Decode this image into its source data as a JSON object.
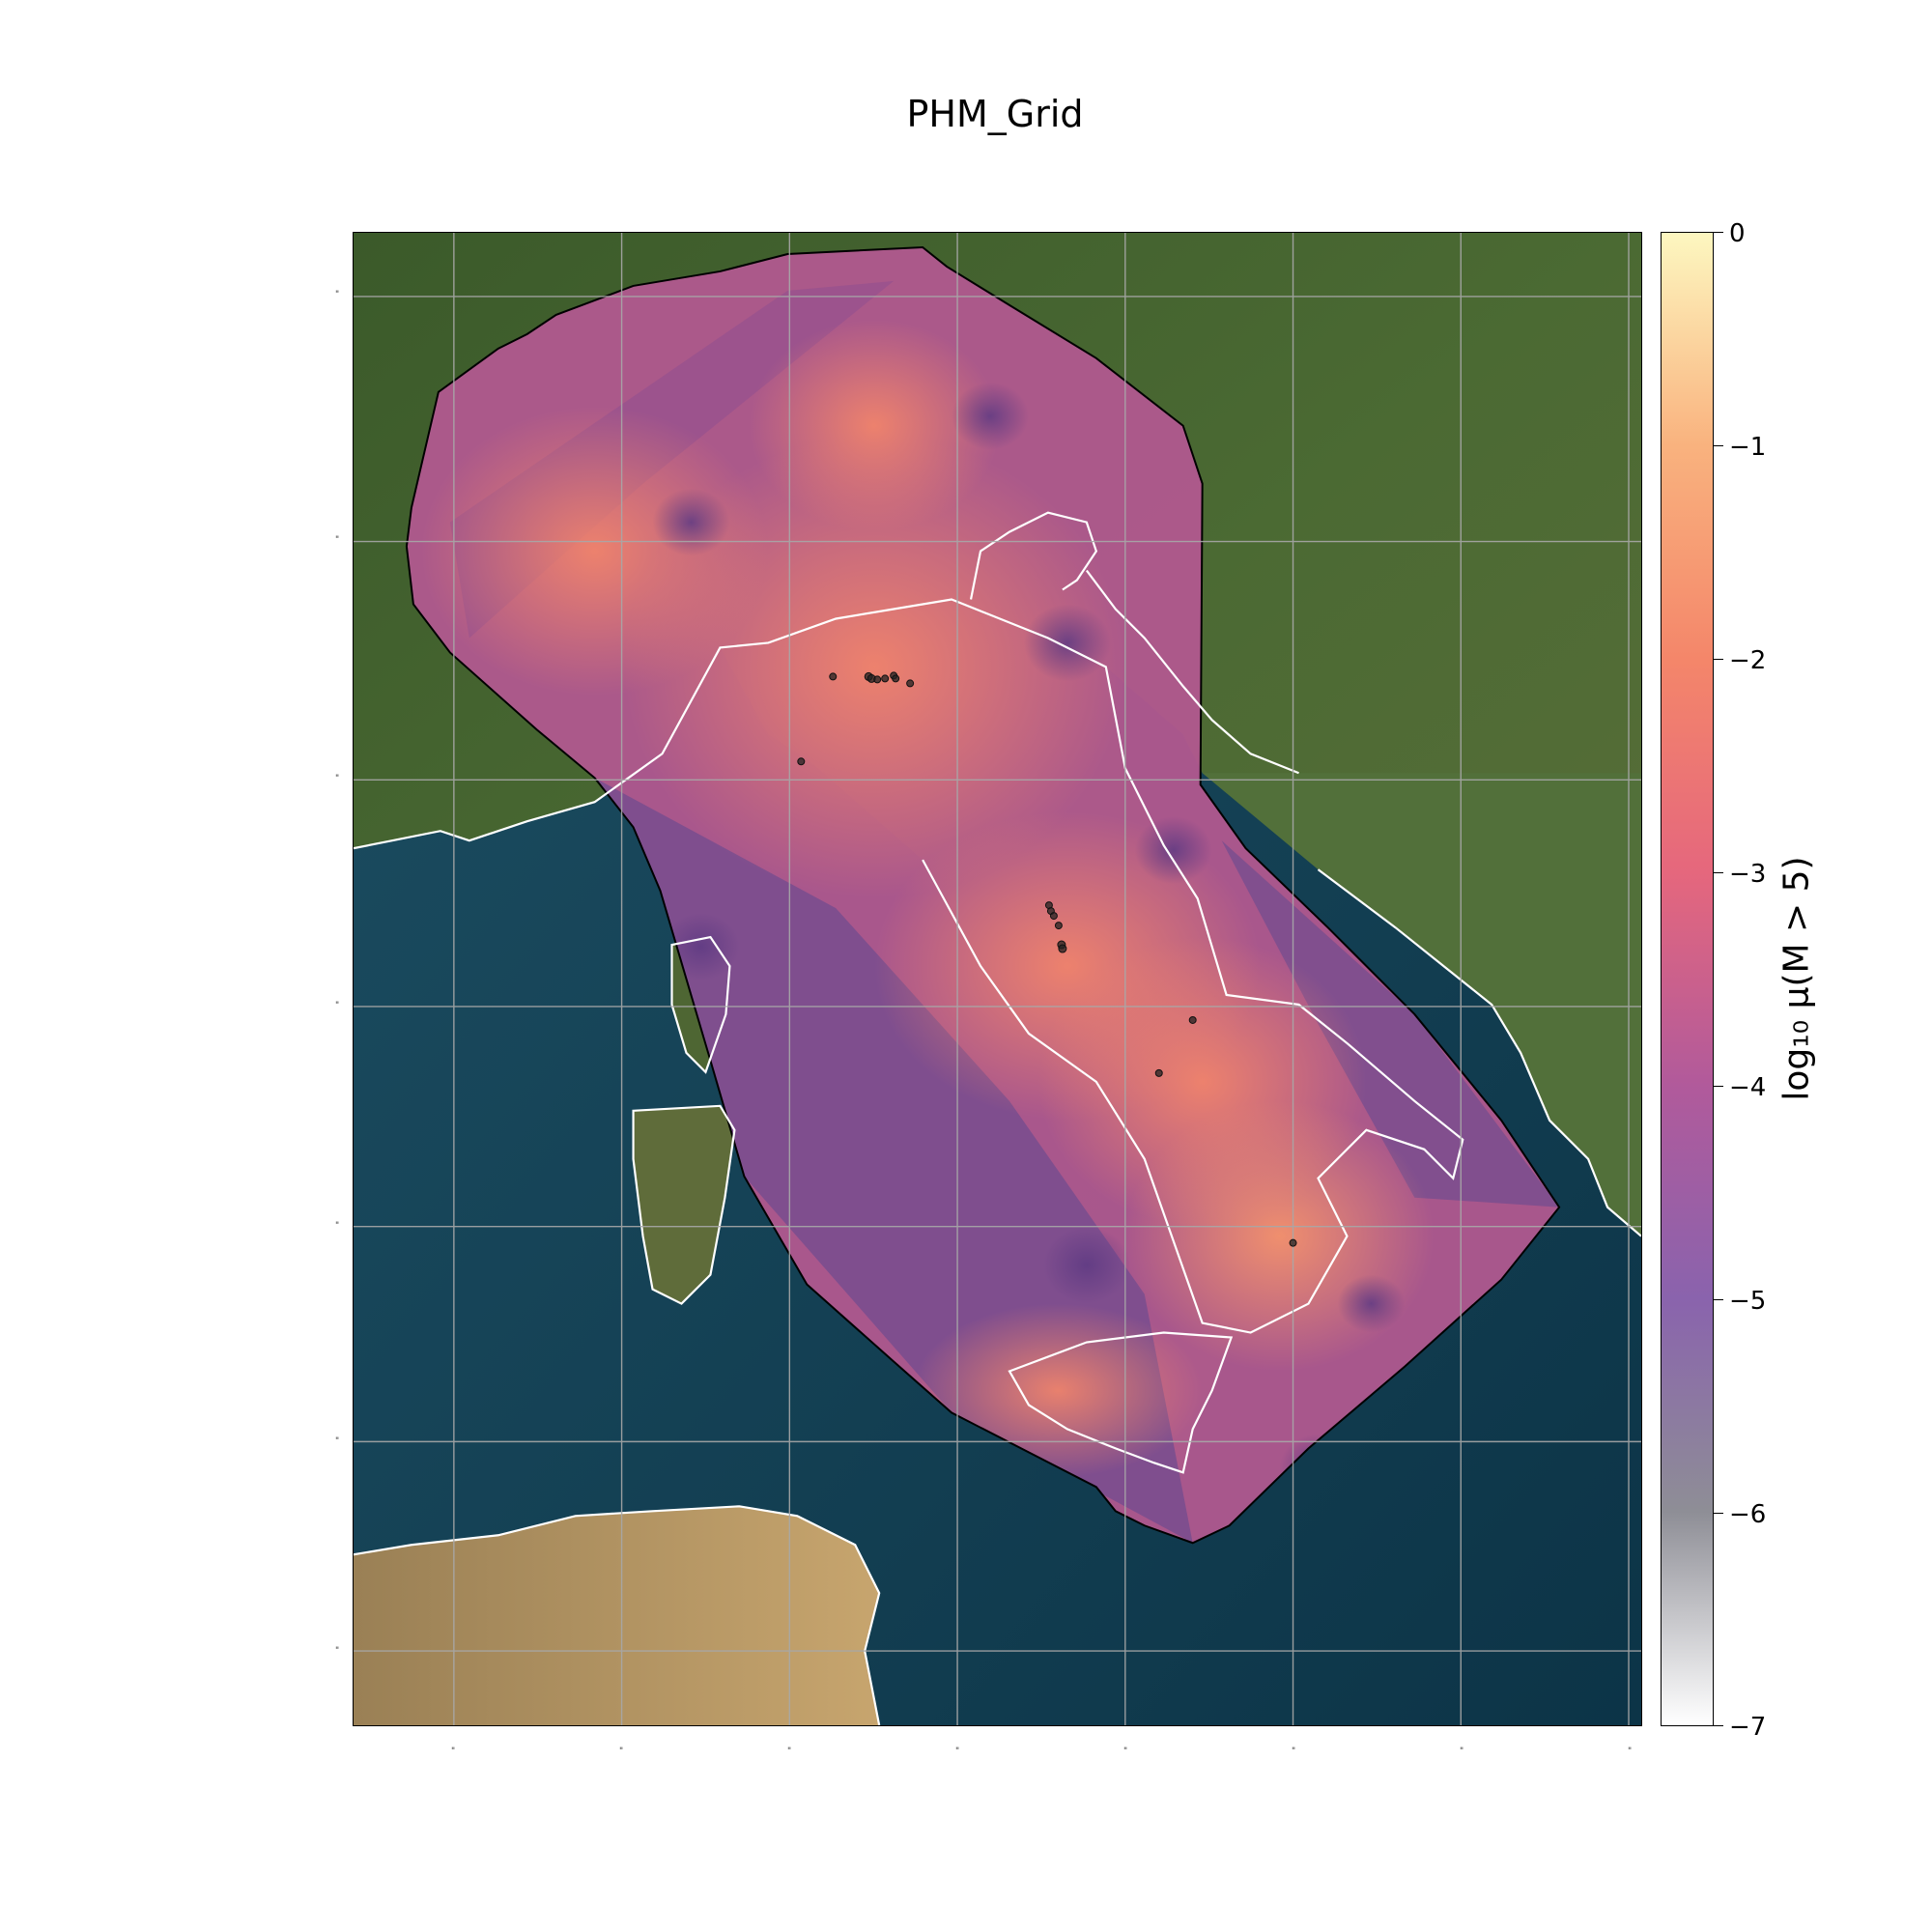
{
  "title": "PHM_Grid",
  "colorbar": {
    "label": "log₁₀ μ(M > 5)",
    "ticks": [
      "0",
      "−1",
      "−2",
      "−3",
      "−4",
      "−5",
      "−6",
      "−7"
    ],
    "range": [
      -7,
      0
    ],
    "colormap": "magma",
    "stops": [
      "#ffffff",
      "#8e8e96",
      "#8a63ad",
      "#b15a9b",
      "#e5677d",
      "#f4866a",
      "#f9b27e",
      "#fdf7c0"
    ]
  },
  "map": {
    "basemap": "satellite imagery",
    "region": "Italy and surrounding seas",
    "coastline_color": "#ffffff",
    "grid_color": "#a8a8a8",
    "lat_tick_labels": [
      "\"",
      "\"",
      "\"",
      "\"",
      "\"",
      "\"",
      "\""
    ],
    "lon_tick_labels": [
      "\"",
      "\"",
      "\"",
      "\"",
      "\"",
      "\"",
      "\"",
      "\""
    ],
    "event_marker_color": "#222222"
  }
}
